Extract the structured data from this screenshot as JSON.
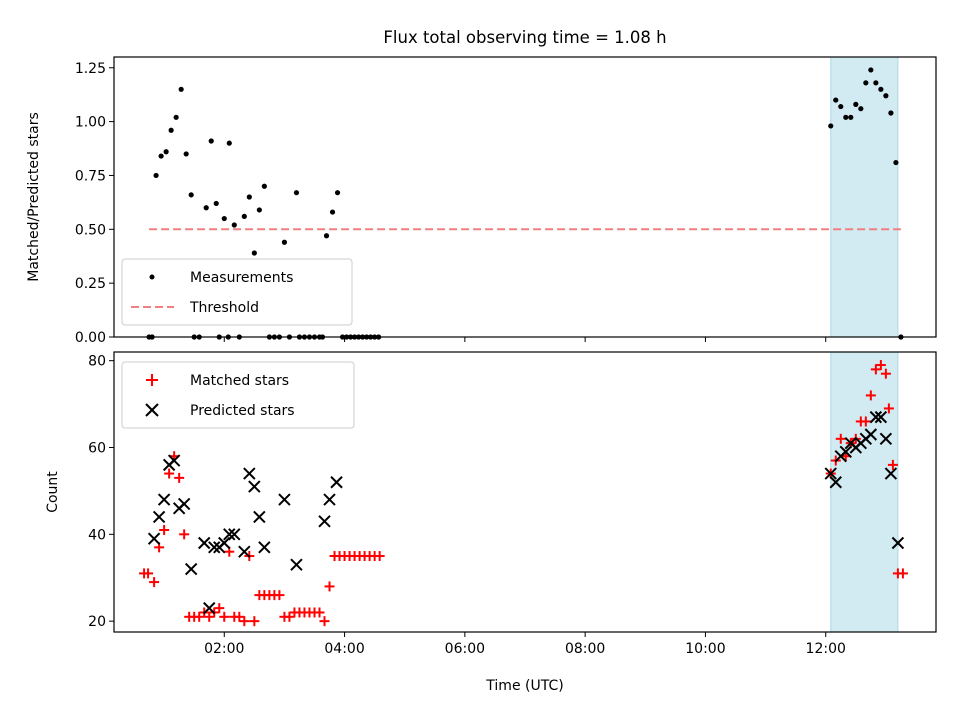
{
  "figure": {
    "title": "Flux total observing time = 1.08 h",
    "xlabel": "Time (UTC)"
  },
  "colors": {
    "measurement": "#000000",
    "threshold": "#f08080",
    "shade": "#add8e6",
    "matched": "#ff0000",
    "predicted": "#000000"
  },
  "chart_data": [
    {
      "type": "scatter",
      "ylabel": "Matched/Predicted stars",
      "xlim": [
        "00:10",
        "13:50"
      ],
      "ylim": [
        0,
        1.3
      ],
      "yticks": [
        0.0,
        0.25,
        0.5,
        0.75,
        1.0,
        1.25
      ],
      "ytick_labels": [
        "0.00",
        "0.25",
        "0.50",
        "0.75",
        "1.00",
        "1.25"
      ],
      "xticks": [
        "02:00",
        "04:00",
        "06:00",
        "08:00",
        "10:00",
        "12:00"
      ],
      "show_xtick_labels": false,
      "shaded_span": [
        "12:05",
        "13:12"
      ],
      "legend": "lower-left",
      "series": [
        {
          "name": "Measurements",
          "marker": "dot",
          "points": [
            [
              "00:45",
              0.0
            ],
            [
              "00:48",
              0.0
            ],
            [
              "00:52",
              0.75
            ],
            [
              "00:57",
              0.84
            ],
            [
              "01:02",
              0.86
            ],
            [
              "01:07",
              0.96
            ],
            [
              "01:12",
              1.02
            ],
            [
              "01:17",
              1.15
            ],
            [
              "01:22",
              0.85
            ],
            [
              "01:27",
              0.66
            ],
            [
              "01:30",
              0.0
            ],
            [
              "01:35",
              0.0
            ],
            [
              "01:42",
              0.6
            ],
            [
              "01:47",
              0.91
            ],
            [
              "01:52",
              0.62
            ],
            [
              "01:55",
              0.0
            ],
            [
              "02:00",
              0.55
            ],
            [
              "02:04",
              0.0
            ],
            [
              "02:05",
              0.9
            ],
            [
              "02:10",
              0.52
            ],
            [
              "02:15",
              0.0
            ],
            [
              "02:20",
              0.56
            ],
            [
              "02:25",
              0.65
            ],
            [
              "02:30",
              0.39
            ],
            [
              "02:35",
              0.59
            ],
            [
              "02:40",
              0.7
            ],
            [
              "02:45",
              0.0
            ],
            [
              "02:50",
              0.0
            ],
            [
              "02:55",
              0.0
            ],
            [
              "03:00",
              0.44
            ],
            [
              "03:05",
              0.0
            ],
            [
              "03:12",
              0.67
            ],
            [
              "03:15",
              0.0
            ],
            [
              "03:20",
              0.0
            ],
            [
              "03:25",
              0.0
            ],
            [
              "03:30",
              0.0
            ],
            [
              "03:35",
              0.0
            ],
            [
              "03:38",
              0.0
            ],
            [
              "03:42",
              0.47
            ],
            [
              "03:48",
              0.58
            ],
            [
              "03:53",
              0.67
            ],
            [
              "03:58",
              0.0
            ],
            [
              "04:02",
              0.0
            ],
            [
              "04:06",
              0.0
            ],
            [
              "04:10",
              0.0
            ],
            [
              "04:14",
              0.0
            ],
            [
              "04:18",
              0.0
            ],
            [
              "04:22",
              0.0
            ],
            [
              "04:26",
              0.0
            ],
            [
              "04:30",
              0.0
            ],
            [
              "04:34",
              0.0
            ],
            [
              "12:05",
              0.98
            ],
            [
              "12:10",
              1.1
            ],
            [
              "12:15",
              1.07
            ],
            [
              "12:20",
              1.02
            ],
            [
              "12:25",
              1.02
            ],
            [
              "12:30",
              1.08
            ],
            [
              "12:35",
              1.06
            ],
            [
              "12:40",
              1.18
            ],
            [
              "12:45",
              1.24
            ],
            [
              "12:50",
              1.18
            ],
            [
              "12:55",
              1.15
            ],
            [
              "13:00",
              1.12
            ],
            [
              "13:05",
              1.04
            ],
            [
              "13:10",
              0.81
            ],
            [
              "13:15",
              0.0
            ]
          ]
        },
        {
          "name": "Threshold",
          "style": "dashed-line",
          "points": [
            [
              "00:45",
              0.5
            ],
            [
              "13:15",
              0.5
            ]
          ]
        }
      ]
    },
    {
      "type": "scatter",
      "ylabel": "Count",
      "xlim": [
        "00:10",
        "13:50"
      ],
      "ylim": [
        17.5,
        82
      ],
      "yticks": [
        20,
        40,
        60,
        80
      ],
      "ytick_labels": [
        "20",
        "40",
        "60",
        "80"
      ],
      "xticks": [
        "02:00",
        "04:00",
        "06:00",
        "08:00",
        "10:00",
        "12:00"
      ],
      "xtick_labels": [
        "02:00",
        "04:00",
        "06:00",
        "08:00",
        "10:00",
        "12:00"
      ],
      "shaded_span": [
        "12:05",
        "13:12"
      ],
      "legend": "top-left",
      "series": [
        {
          "name": "Matched stars",
          "marker": "plus",
          "points": [
            [
              "00:40",
              31
            ],
            [
              "00:44",
              31
            ],
            [
              "00:50",
              29
            ],
            [
              "00:55",
              37
            ],
            [
              "01:00",
              41
            ],
            [
              "01:05",
              54
            ],
            [
              "01:10",
              58
            ],
            [
              "01:15",
              53
            ],
            [
              "01:20",
              40
            ],
            [
              "01:25",
              21
            ],
            [
              "01:30",
              21
            ],
            [
              "01:35",
              21
            ],
            [
              "01:40",
              22
            ],
            [
              "01:45",
              21
            ],
            [
              "01:50",
              22
            ],
            [
              "01:55",
              23
            ],
            [
              "02:00",
              21
            ],
            [
              "02:05",
              36
            ],
            [
              "02:10",
              21
            ],
            [
              "02:15",
              21
            ],
            [
              "02:20",
              20
            ],
            [
              "02:25",
              35
            ],
            [
              "02:30",
              20
            ],
            [
              "02:35",
              26
            ],
            [
              "02:40",
              26
            ],
            [
              "02:45",
              26
            ],
            [
              "02:50",
              26
            ],
            [
              "02:55",
              26
            ],
            [
              "03:00",
              21
            ],
            [
              "03:05",
              21
            ],
            [
              "03:10",
              22
            ],
            [
              "03:15",
              22
            ],
            [
              "03:20",
              22
            ],
            [
              "03:25",
              22
            ],
            [
              "03:30",
              22
            ],
            [
              "03:35",
              22
            ],
            [
              "03:40",
              20
            ],
            [
              "03:45",
              28
            ],
            [
              "03:50",
              35
            ],
            [
              "03:55",
              35
            ],
            [
              "04:00",
              35
            ],
            [
              "04:05",
              35
            ],
            [
              "04:10",
              35
            ],
            [
              "04:15",
              35
            ],
            [
              "04:20",
              35
            ],
            [
              "04:25",
              35
            ],
            [
              "04:30",
              35
            ],
            [
              "04:35",
              35
            ],
            [
              "12:05",
              54
            ],
            [
              "12:10",
              57
            ],
            [
              "12:15",
              62
            ],
            [
              "12:20",
              58
            ],
            [
              "12:25",
              61
            ],
            [
              "12:30",
              62
            ],
            [
              "12:35",
              66
            ],
            [
              "12:40",
              66
            ],
            [
              "12:45",
              72
            ],
            [
              "12:50",
              78
            ],
            [
              "12:55",
              79
            ],
            [
              "13:00",
              77
            ],
            [
              "13:03",
              69
            ],
            [
              "13:07",
              56
            ],
            [
              "13:12",
              31
            ],
            [
              "13:17",
              31
            ]
          ]
        },
        {
          "name": "Predicted stars",
          "marker": "x",
          "points": [
            [
              "00:50",
              39
            ],
            [
              "00:55",
              44
            ],
            [
              "01:00",
              48
            ],
            [
              "01:05",
              56
            ],
            [
              "01:10",
              57
            ],
            [
              "01:15",
              46
            ],
            [
              "01:20",
              47
            ],
            [
              "01:27",
              32
            ],
            [
              "01:40",
              38
            ],
            [
              "01:45",
              23
            ],
            [
              "01:50",
              37
            ],
            [
              "01:55",
              37
            ],
            [
              "02:00",
              38
            ],
            [
              "02:05",
              40
            ],
            [
              "02:10",
              40
            ],
            [
              "02:20",
              36
            ],
            [
              "02:25",
              54
            ],
            [
              "02:30",
              51
            ],
            [
              "02:35",
              44
            ],
            [
              "02:40",
              37
            ],
            [
              "03:00",
              48
            ],
            [
              "03:12",
              33
            ],
            [
              "03:40",
              43
            ],
            [
              "03:45",
              48
            ],
            [
              "03:52",
              52
            ],
            [
              "12:05",
              54
            ],
            [
              "12:10",
              52
            ],
            [
              "12:15",
              58
            ],
            [
              "12:20",
              59
            ],
            [
              "12:25",
              61
            ],
            [
              "12:30",
              60
            ],
            [
              "12:35",
              61
            ],
            [
              "12:40",
              62
            ],
            [
              "12:45",
              63
            ],
            [
              "12:50",
              67
            ],
            [
              "12:55",
              67
            ],
            [
              "13:00",
              62
            ],
            [
              "13:05",
              54
            ],
            [
              "13:12",
              38
            ]
          ]
        }
      ]
    }
  ]
}
